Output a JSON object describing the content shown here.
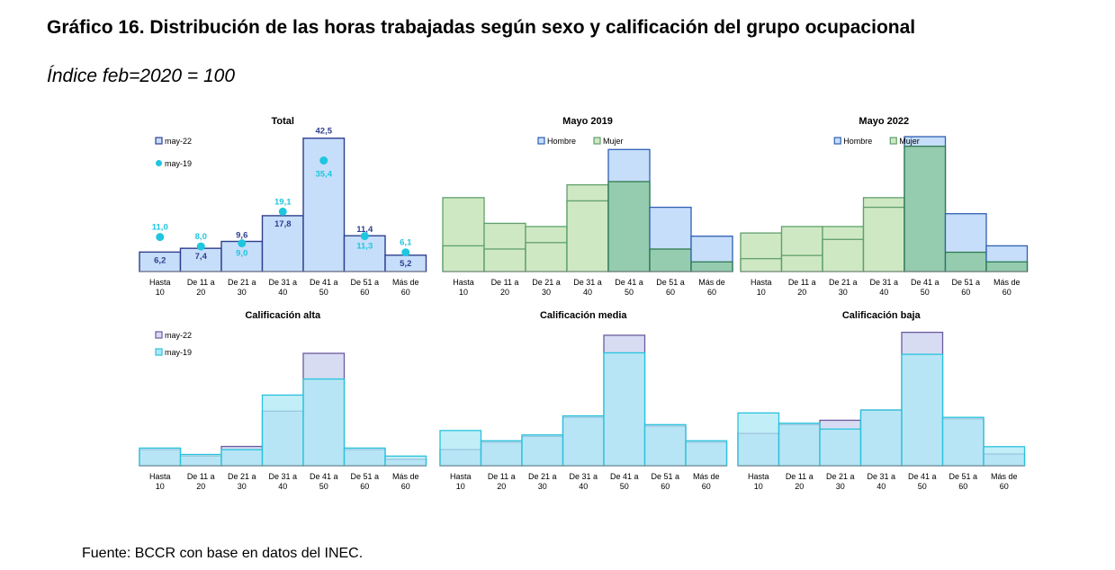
{
  "page": {
    "title": "Gráfico 16. Distribución de las horas trabajadas según sexo y calificación del grupo ocupacional",
    "subtitle": "Índice feb=2020 = 100",
    "source": "Fuente: BCCR con base en datos del INEC."
  },
  "colors": {
    "may22_fill": "#c6defa",
    "may22_stroke": "#2f3f8f",
    "may19_dot": "#1fc6df",
    "may19_label": "#1fc6df",
    "hombre_fill": "#c6defa",
    "hombre_stroke": "#2f5fb3",
    "mujer_fill": "#cfe8c4",
    "mujer_stroke": "#5fa06b",
    "hombre_in_fill": "#8fcaa6",
    "hombre_in_stroke": "#2f7a4f",
    "cal_back_fill": "#d7dcf3",
    "cal_back_stroke": "#6b5b9e",
    "cal_front_fill": "#aee8f6",
    "cal_front_stroke": "#28c3dc"
  },
  "chart_data": [
    {
      "id": "total",
      "type": "bar",
      "title": "Total",
      "categories": [
        "Hasta 10",
        "De 11 a 20",
        "De 21 a 30",
        "De 31 a 40",
        "De 41 a 50",
        "De 51 a 60",
        "Más de 60"
      ],
      "tick_lines": [
        [
          "Hasta",
          "10"
        ],
        [
          "De 11 a",
          "20"
        ],
        [
          "De 21 a",
          "30"
        ],
        [
          "De 31 a",
          "40"
        ],
        [
          "De 41 a",
          "50"
        ],
        [
          "De 51 a",
          "60"
        ],
        [
          "Más de",
          "60"
        ]
      ],
      "series": [
        {
          "name": "may-22",
          "kind": "bar",
          "values": [
            6.2,
            7.4,
            9.6,
            17.8,
            42.5,
            11.4,
            5.2
          ],
          "labels": [
            "6,2",
            "7,4",
            "9,6",
            "17,8",
            "42,5",
            "11,4",
            "5,2"
          ]
        },
        {
          "name": "may-19",
          "kind": "dot",
          "values": [
            11.0,
            8.0,
            9.0,
            19.1,
            35.4,
            11.3,
            6.1
          ],
          "labels": [
            "11,0",
            "8,0",
            "9,0",
            "19,1",
            "35,4",
            "11,3",
            "6,1"
          ]
        }
      ],
      "legend": [
        "may-22",
        "may-19"
      ],
      "ylim": [
        0,
        43
      ]
    },
    {
      "id": "mayo2019",
      "type": "bar",
      "title": "Mayo 2019",
      "categories": [
        "Hasta 10",
        "De 11 a 20",
        "De 21 a 30",
        "De 31 a 40",
        "De 41 a 50",
        "De 51 a 60",
        "Más de 60"
      ],
      "tick_lines": [
        [
          "Hasta",
          "10"
        ],
        [
          "De 11 a",
          "20"
        ],
        [
          "De 21 a",
          "30"
        ],
        [
          "De 31 a",
          "40"
        ],
        [
          "De 41 a",
          "50"
        ],
        [
          "De 51 a",
          "60"
        ],
        [
          "Más de",
          "60"
        ]
      ],
      "series": [
        {
          "name": "Hombre",
          "values": [
            8,
            7,
            9,
            22,
            38,
            20,
            11
          ]
        },
        {
          "name": "Mujer",
          "values": [
            23,
            15,
            14,
            27,
            28,
            7,
            3
          ]
        }
      ],
      "legend": [
        "Hombre",
        "Mujer"
      ],
      "ylim": [
        0,
        42
      ]
    },
    {
      "id": "mayo2022",
      "type": "bar",
      "title": "Mayo 2022",
      "categories": [
        "Hasta 10",
        "De 11 a 20",
        "De 21 a 30",
        "De 31 a 40",
        "De 41 a 50",
        "De 51 a 60",
        "Más de 60"
      ],
      "tick_lines": [
        [
          "Hasta",
          "10"
        ],
        [
          "De 11 a",
          "20"
        ],
        [
          "De 21 a",
          "30"
        ],
        [
          "De 31 a",
          "40"
        ],
        [
          "De 41 a",
          "50"
        ],
        [
          "De 51 a",
          "60"
        ],
        [
          "Más de",
          "60"
        ]
      ],
      "series": [
        {
          "name": "Hombre",
          "values": [
            4,
            5,
            10,
            20,
            42,
            18,
            8
          ]
        },
        {
          "name": "Mujer",
          "values": [
            12,
            14,
            14,
            23,
            39,
            6,
            3
          ]
        }
      ],
      "legend": [
        "Hombre",
        "Mujer"
      ],
      "ylim": [
        0,
        42
      ]
    },
    {
      "id": "cal_alta",
      "type": "bar",
      "title": "Calificación alta",
      "categories": [
        "Hasta 10",
        "De 11 a 20",
        "De 21 a 30",
        "De 31 a 40",
        "De 41 a 50",
        "De 51 a 60",
        "Más de 60"
      ],
      "tick_lines": [
        [
          "Hasta",
          "10"
        ],
        [
          "De 11 a",
          "20"
        ],
        [
          "De 21 a",
          "30"
        ],
        [
          "De 31 a",
          "40"
        ],
        [
          "De 41 a",
          "50"
        ],
        [
          "De 51 a",
          "60"
        ],
        [
          "Más de",
          "60"
        ]
      ],
      "series": [
        {
          "name": "may-22",
          "values": [
            5,
            3,
            6,
            17,
            35,
            5,
            2
          ]
        },
        {
          "name": "may-19",
          "values": [
            5.5,
            3.5,
            5,
            22,
            27,
            5.5,
            3
          ]
        }
      ],
      "legend": [
        "may-22",
        "may-19"
      ],
      "ylim": [
        0,
        42
      ]
    },
    {
      "id": "cal_media",
      "type": "bar",
      "title": "Calificación media",
      "categories": [
        "Hasta 10",
        "De 11 a 20",
        "De 21 a 30",
        "De 31 a 40",
        "De 41 a 50",
        "De 51 a 60",
        "Más de 60"
      ],
      "tick_lines": [
        [
          "Hasta",
          "10"
        ],
        [
          "De 11 a",
          "20"
        ],
        [
          "De 21 a",
          "30"
        ],
        [
          "De 31 a",
          "40"
        ],
        [
          "De 41 a",
          "50"
        ],
        [
          "De 51 a",
          "60"
        ],
        [
          "Más de",
          "60"
        ]
      ],
      "series": [
        {
          "name": "may-22",
          "values": [
            5.5,
            8,
            10,
            16.5,
            44.5,
            13.5,
            8
          ]
        },
        {
          "name": "may-19",
          "values": [
            12,
            8.5,
            10.5,
            17,
            38.5,
            14,
            8.5
          ]
        }
      ],
      "legend": [],
      "ylim": [
        0,
        46
      ]
    },
    {
      "id": "cal_baja",
      "type": "bar",
      "title": "Calificación baja",
      "categories": [
        "Hasta 10",
        "De 11 a 20",
        "De 21 a 30",
        "De 31 a 40",
        "De 41 a 50",
        "De 51 a 60",
        "Más de 60"
      ],
      "tick_lines": [
        [
          "Hasta",
          "10"
        ],
        [
          "De 11 a",
          "20"
        ],
        [
          "De 21 a",
          "30"
        ],
        [
          "De 31 a",
          "40"
        ],
        [
          "De 41 a",
          "50"
        ],
        [
          "De 51 a",
          "60"
        ],
        [
          "Más de",
          "60"
        ]
      ],
      "series": [
        {
          "name": "may-22",
          "values": [
            11,
            14,
            15.5,
            19,
            45.5,
            16,
            4
          ]
        },
        {
          "name": "may-19",
          "values": [
            18,
            14.5,
            12.5,
            19,
            38,
            16.5,
            6.5
          ]
        }
      ],
      "legend": [],
      "ylim": [
        0,
        46
      ]
    }
  ]
}
